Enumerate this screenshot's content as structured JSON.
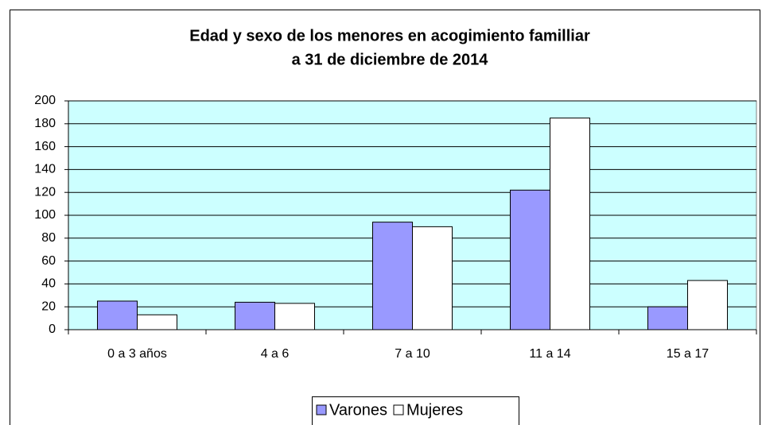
{
  "chart_data": {
    "type": "bar",
    "title": [
      "Edad y sexo de los menores en acogimiento familliar",
      "a 31 de diciembre de 2014"
    ],
    "categories": [
      "0 a 3 años",
      "4 a 6",
      "7 a 10",
      "11 a 14",
      "15 a 17"
    ],
    "series": [
      {
        "name": "Varones",
        "color": "#9999ff",
        "values": [
          25,
          24,
          94,
          122,
          20
        ]
      },
      {
        "name": "Mujeres",
        "color": "#ffffff",
        "values": [
          13,
          23,
          90,
          185,
          43
        ]
      }
    ],
    "ylim": [
      0,
      200
    ],
    "yticks": [
      0,
      20,
      40,
      60,
      80,
      100,
      120,
      140,
      160,
      180,
      200
    ],
    "grid": true,
    "plot_background": "#ccffff",
    "legend": "bottom"
  }
}
